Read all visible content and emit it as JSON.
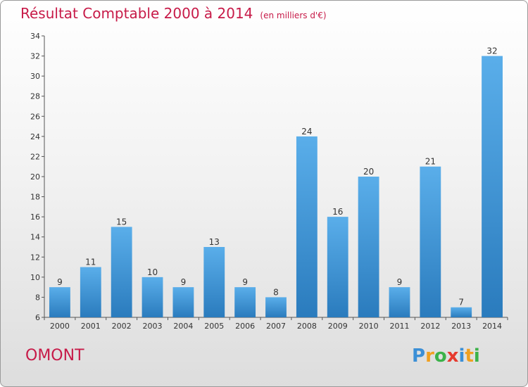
{
  "title": "Résultat Comptable 2000 à 2014",
  "subtitle": "(en milliers d'€)",
  "commune": "OMONT",
  "logo": {
    "letters": [
      "P",
      "r",
      "o",
      "x",
      "i",
      "t",
      "i"
    ],
    "colors": [
      "#3b8fd6",
      "#f0a020",
      "#3bb24a",
      "#e63a2e",
      "#3b8fd6",
      "#f0a020",
      "#3bb24a"
    ]
  },
  "colors": {
    "bar_top": "#5aaeea",
    "bar_bottom": "#2a7bbd",
    "title": "#c71a48"
  },
  "chart_data": {
    "type": "bar",
    "title": "Résultat Comptable 2000 à 2014",
    "xlabel": "",
    "ylabel": "",
    "categories": [
      "2000",
      "2001",
      "2002",
      "2003",
      "2004",
      "2005",
      "2006",
      "2007",
      "2008",
      "2009",
      "2010",
      "2011",
      "2012",
      "2013",
      "2014"
    ],
    "values": [
      9,
      11,
      15,
      10,
      9,
      13,
      9,
      8,
      24,
      16,
      20,
      9,
      21,
      7,
      32
    ],
    "ylim": [
      6,
      34
    ],
    "yticks": [
      6,
      8,
      10,
      12,
      14,
      16,
      18,
      20,
      22,
      24,
      26,
      28,
      30,
      32,
      34
    ],
    "grid": false
  }
}
